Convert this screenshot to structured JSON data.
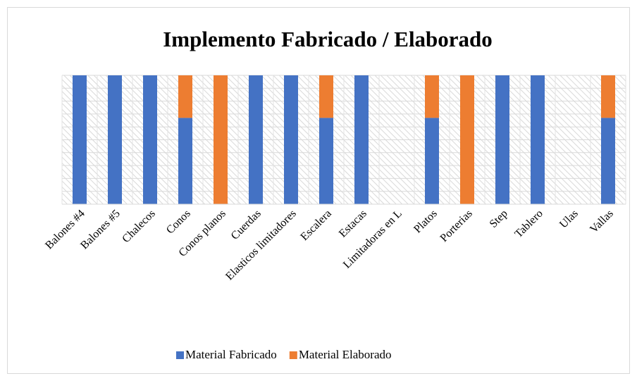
{
  "chart_data": {
    "type": "stacked_bar",
    "title": "Implemento Fabricado / Elaborado",
    "categories": [
      "Balones #4",
      "Balones #5",
      "Chalecos",
      "Conos",
      "Conos planos",
      "Cuerdas",
      "Elasticos limitadores",
      "Escalera",
      "Estacas",
      "Limitadoras en L",
      "Platos",
      "Porterias",
      "Step",
      "Tablero",
      "Ulas",
      "Vallas"
    ],
    "series": [
      {
        "name": "Material Fabricado",
        "color": "#4472c4",
        "values": [
          100,
          100,
          100,
          67,
          0,
          100,
          100,
          67,
          100,
          0,
          67,
          0,
          100,
          100,
          0,
          67
        ]
      },
      {
        "name": "Material Elaborado",
        "color": "#ed7d31",
        "values": [
          0,
          0,
          0,
          33,
          100,
          0,
          0,
          33,
          0,
          0,
          33,
          100,
          0,
          0,
          0,
          33
        ]
      }
    ],
    "ylim": [
      0,
      100
    ],
    "yticks": [
      0,
      10,
      20,
      30,
      40,
      50,
      60,
      70,
      80,
      90,
      100
    ],
    "grid": true,
    "legend": "bottom"
  }
}
